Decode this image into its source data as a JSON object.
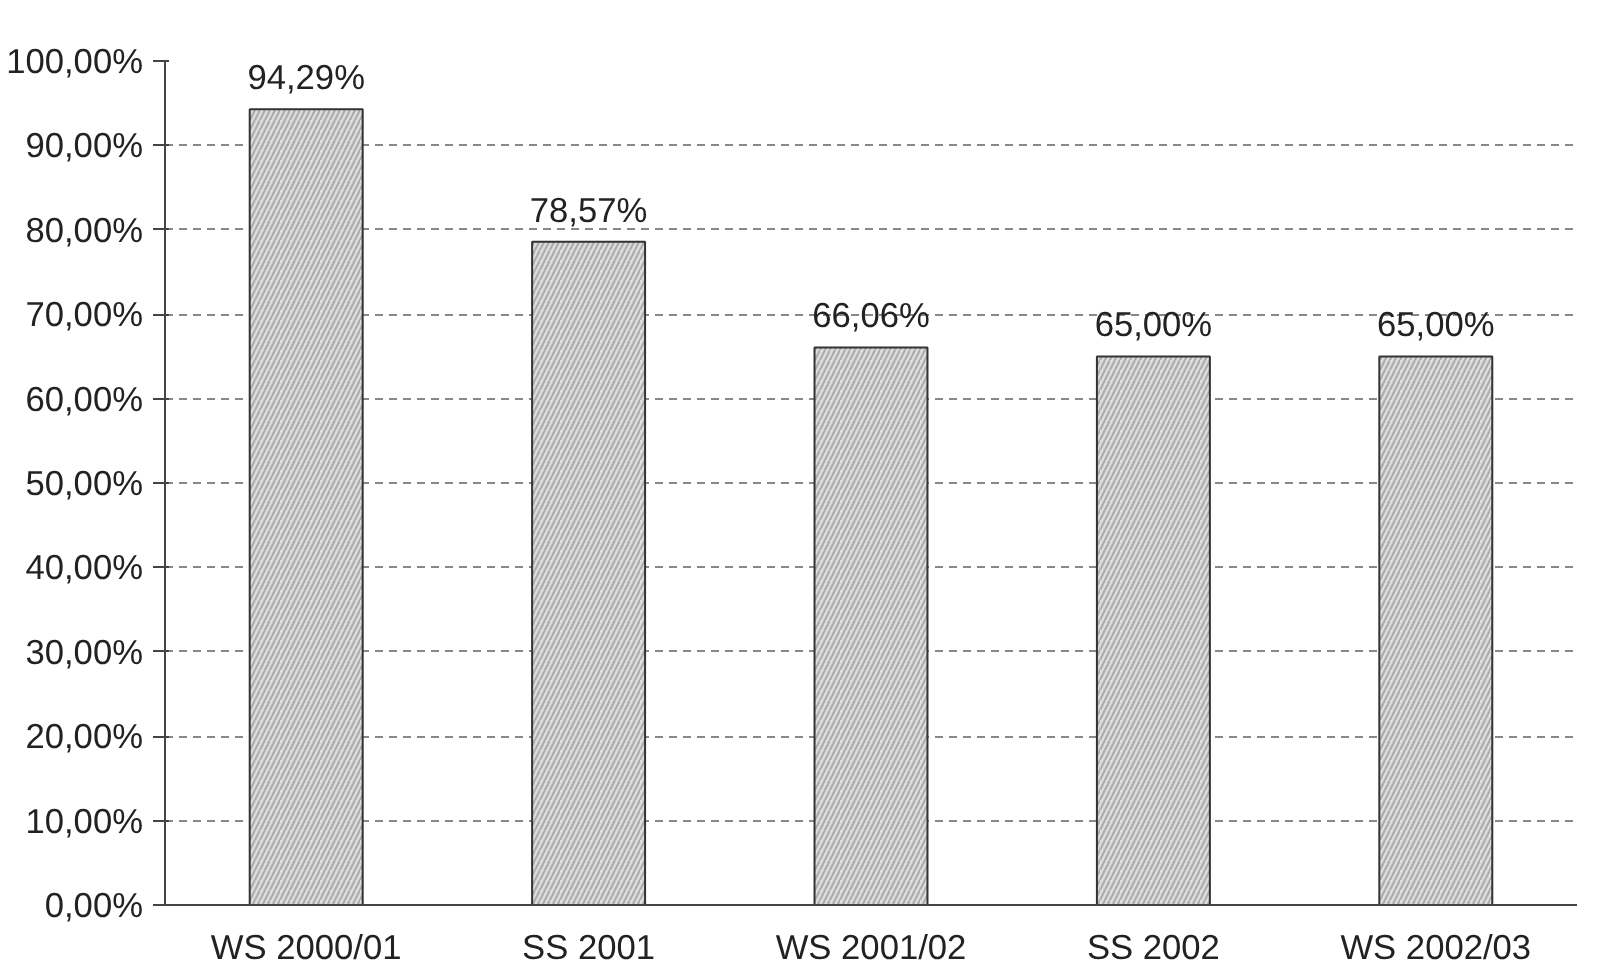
{
  "chart_data": {
    "type": "bar",
    "categories": [
      "WS 2000/01",
      "SS 2001",
      "WS 2001/02",
      "SS 2002",
      "WS 2002/03"
    ],
    "values": [
      94.29,
      78.57,
      66.06,
      65.0,
      65.0
    ],
    "value_labels": [
      "94,29%",
      "78,57%",
      "66,06%",
      "65,00%",
      "65,00%"
    ],
    "color": "#dcdcdc",
    "ylim": [
      0,
      100
    ],
    "yticks": [
      {
        "value": 0,
        "label": "0,00%"
      },
      {
        "value": 10,
        "label": "10,00%"
      },
      {
        "value": 20,
        "label": "20,00%"
      },
      {
        "value": 30,
        "label": "30,00%"
      },
      {
        "value": 40,
        "label": "40,00%"
      },
      {
        "value": 50,
        "label": "50,00%"
      },
      {
        "value": 60,
        "label": "60,00%"
      },
      {
        "value": 70,
        "label": "70,00%"
      },
      {
        "value": 80,
        "label": "80,00%"
      },
      {
        "value": 90,
        "label": "90,00%"
      },
      {
        "value": 100,
        "label": "100,00%"
      }
    ],
    "grid": "y"
  }
}
